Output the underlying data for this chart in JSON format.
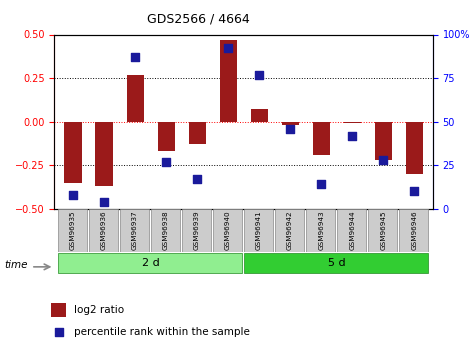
{
  "title": "GDS2566 / 4664",
  "samples": [
    "GSM96935",
    "GSM96936",
    "GSM96937",
    "GSM96938",
    "GSM96939",
    "GSM96940",
    "GSM96941",
    "GSM96942",
    "GSM96943",
    "GSM96944",
    "GSM96945",
    "GSM96946"
  ],
  "log2_ratio": [
    -0.35,
    -0.37,
    0.27,
    -0.17,
    -0.13,
    0.47,
    0.07,
    -0.02,
    -0.19,
    -0.01,
    -0.22,
    -0.3
  ],
  "percentile_rank": [
    8,
    4,
    87,
    27,
    17,
    92,
    77,
    46,
    14,
    42,
    28,
    10
  ],
  "bar_color": "#9b1a1a",
  "dot_color": "#1a1a9b",
  "group1_label": "2 d",
  "group2_label": "5 d",
  "group1_indices": [
    0,
    1,
    2,
    3,
    4,
    5
  ],
  "group2_indices": [
    6,
    7,
    8,
    9,
    10,
    11
  ],
  "group1_color": "#90ee90",
  "group2_color": "#32cd32",
  "ylim_left": [
    -0.5,
    0.5
  ],
  "ylim_right": [
    0,
    100
  ],
  "yticks_left": [
    -0.5,
    -0.25,
    0.0,
    0.25,
    0.5
  ],
  "yticks_right": [
    0,
    25,
    50,
    75,
    100
  ],
  "hlines": [
    -0.25,
    0.0,
    0.25
  ],
  "hline_colors": [
    "black",
    "red",
    "black"
  ],
  "hline_styles": [
    "dotted",
    "dotted",
    "dotted"
  ],
  "bar_width": 0.55,
  "dot_size": 40,
  "legend_log2": "log2 ratio",
  "legend_pct": "percentile rank within the sample",
  "time_label": "time",
  "background_color": "#ffffff"
}
